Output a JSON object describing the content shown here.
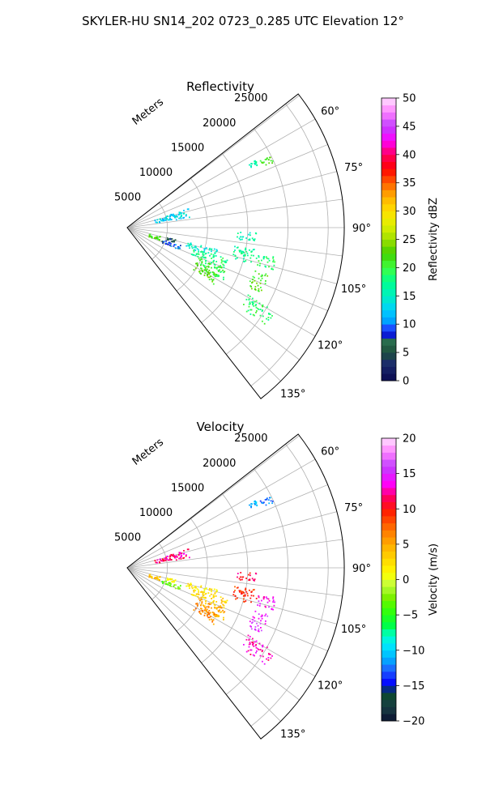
{
  "figure": {
    "title": "SKYLER-HU  SN14_202  0723_0.285 UTC Elevation 12°"
  },
  "chart_data": [
    {
      "type": "heatmap",
      "projection": "polar-sector",
      "title": "Reflectivity",
      "range_label": "Meters",
      "range_ticks": [
        "5000",
        "10000",
        "15000",
        "20000",
        "25000"
      ],
      "range_values": [
        5000,
        10000,
        15000,
        20000,
        25000
      ],
      "rmax": 27000,
      "azimuth_limits": [
        52,
        142
      ],
      "azimuth_ticks": [
        "60°",
        "75°",
        "90°",
        "105°",
        "120°",
        "135°"
      ],
      "azimuth_values": [
        60,
        75,
        90,
        105,
        120,
        135
      ],
      "grid": true,
      "colorbar": {
        "label": "Reflectivity dBZ",
        "min": 0,
        "max": 50,
        "ticks": [
          "0",
          "5",
          "10",
          "15",
          "20",
          "25",
          "30",
          "35",
          "40",
          "45",
          "50"
        ],
        "tick_values": [
          0,
          5,
          10,
          15,
          20,
          25,
          30,
          35,
          40,
          45,
          50
        ],
        "colormap": "pyart_NWSRef"
      },
      "echo_regions": [
        {
          "az": [
            63,
            66
          ],
          "r": [
            18500,
            20000
          ],
          "value": 22
        },
        {
          "az": [
            62,
            64
          ],
          "r": [
            17000,
            18000
          ],
          "value": 16
        },
        {
          "az": [
            92,
            96
          ],
          "r": [
            13500,
            16000
          ],
          "value": 16
        },
        {
          "az": [
            99,
            106
          ],
          "r": [
            13500,
            16500
          ],
          "value": 17
        },
        {
          "az": [
            101,
            106
          ],
          "r": [
            16500,
            19000
          ],
          "value": 19
        },
        {
          "az": [
            103,
            108
          ],
          "r": [
            7500,
            11500
          ],
          "value": 15
        },
        {
          "az": [
            107,
            113
          ],
          "r": [
            8500,
            13000
          ],
          "value": 18
        },
        {
          "az": [
            112,
            119
          ],
          "r": [
            9500,
            13500
          ],
          "value": 20
        },
        {
          "az": [
            117,
            123
          ],
          "r": [
            9500,
            13000
          ],
          "value": 22
        },
        {
          "az": [
            108,
            113
          ],
          "r": [
            4500,
            7000
          ],
          "value": 9
        },
        {
          "az": [
            103,
            107
          ],
          "r": [
            5000,
            6500
          ],
          "value": 6
        },
        {
          "az": [
            104,
            112
          ],
          "r": [
            2800,
            4200
          ],
          "value": 22
        },
        {
          "az": [
            72,
            80
          ],
          "r": [
            3500,
            8000
          ],
          "value": 13
        },
        {
          "az": [
            108,
            116
          ],
          "r": [
            16500,
            18500
          ],
          "value": 22
        },
        {
          "az": [
            119,
            125
          ],
          "r": [
            17000,
            21000
          ],
          "value": 19
        }
      ]
    },
    {
      "type": "heatmap",
      "projection": "polar-sector",
      "title": "Velocity",
      "range_label": "Meters",
      "range_ticks": [
        "5000",
        "10000",
        "15000",
        "20000",
        "25000"
      ],
      "range_values": [
        5000,
        10000,
        15000,
        20000,
        25000
      ],
      "rmax": 27000,
      "azimuth_limits": [
        52,
        142
      ],
      "azimuth_ticks": [
        "60°",
        "75°",
        "90°",
        "105°",
        "120°",
        "135°"
      ],
      "azimuth_values": [
        60,
        75,
        90,
        105,
        120,
        135
      ],
      "grid": true,
      "colorbar": {
        "label": "Velocity (m/s)",
        "min": -20,
        "max": 20,
        "ticks": [
          "−20",
          "−15",
          "−10",
          "−5",
          "0",
          "5",
          "10",
          "15",
          "20"
        ],
        "tick_values": [
          -20,
          -15,
          -10,
          -5,
          0,
          5,
          10,
          15,
          20
        ],
        "colormap": "pyart_BuDRd18"
      },
      "echo_regions": [
        {
          "az": [
            63,
            66
          ],
          "r": [
            18500,
            20000
          ],
          "value": -12
        },
        {
          "az": [
            62,
            64
          ],
          "r": [
            17000,
            18000
          ],
          "value": -11
        },
        {
          "az": [
            92,
            96
          ],
          "r": [
            13500,
            16000
          ],
          "value": 11
        },
        {
          "az": [
            99,
            106
          ],
          "r": [
            13500,
            16500
          ],
          "value": 9
        },
        {
          "az": [
            101,
            106
          ],
          "r": [
            16500,
            19000
          ],
          "value": 14
        },
        {
          "az": [
            103,
            108
          ],
          "r": [
            7500,
            11500
          ],
          "value": 2
        },
        {
          "az": [
            107,
            113
          ],
          "r": [
            8500,
            13000
          ],
          "value": 3
        },
        {
          "az": [
            112,
            119
          ],
          "r": [
            9500,
            13500
          ],
          "value": 5
        },
        {
          "az": [
            117,
            123
          ],
          "r": [
            9500,
            13000
          ],
          "value": 6
        },
        {
          "az": [
            108,
            113
          ],
          "r": [
            4500,
            7000
          ],
          "value": -3
        },
        {
          "az": [
            103,
            107
          ],
          "r": [
            5000,
            6500
          ],
          "value": 1
        },
        {
          "az": [
            104,
            112
          ],
          "r": [
            2800,
            4200
          ],
          "value": 4
        },
        {
          "az": [
            72,
            80
          ],
          "r": [
            3500,
            8000
          ],
          "value": 12
        },
        {
          "az": [
            108,
            116
          ],
          "r": [
            16500,
            18500
          ],
          "value": 15
        },
        {
          "az": [
            119,
            125
          ],
          "r": [
            17000,
            21000
          ],
          "value": 13
        }
      ]
    }
  ]
}
